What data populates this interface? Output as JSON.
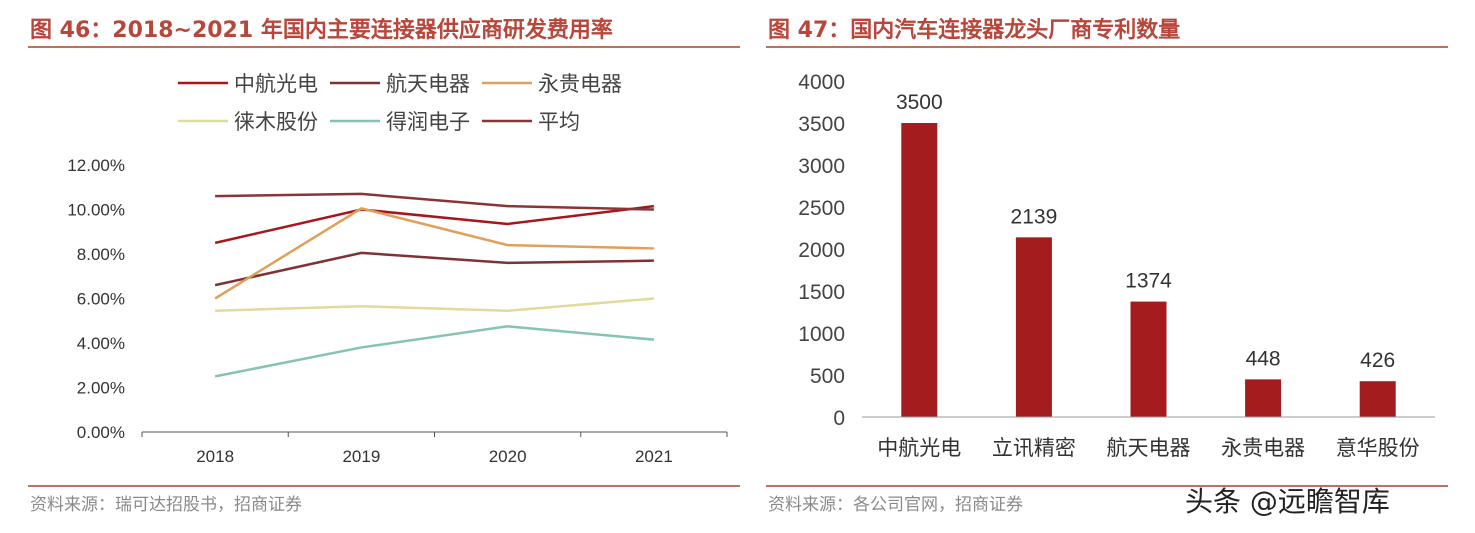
{
  "left": {
    "title": "图 46：2018~2021 年国内主要连接器供应商研发费用率",
    "source": "资料来源：瑞可达招股书，招商证券"
  },
  "right": {
    "title": "图 47：国内汽车连接器龙头厂商专利数量",
    "source": "资料来源：各公司官网，招商证券"
  },
  "watermark": "头条 @远瞻智库",
  "chart_data": [
    {
      "type": "line",
      "categories": [
        "2018",
        "2019",
        "2020",
        "2021"
      ],
      "ylim": [
        0,
        12
      ],
      "yticks": [
        "0.00%",
        "2.00%",
        "4.00%",
        "6.00%",
        "8.00%",
        "10.00%",
        "12.00%"
      ],
      "legend": "top",
      "series": [
        {
          "name": "中航光电",
          "color": "#a8151b",
          "values": [
            8.5,
            10.0,
            9.35,
            10.15
          ]
        },
        {
          "name": "航天电器",
          "color": "#7f3236",
          "values": [
            6.6,
            8.05,
            7.6,
            7.7
          ]
        },
        {
          "name": "永贵电器",
          "color": "#e0a05a",
          "values": [
            6.0,
            10.05,
            8.4,
            8.25
          ]
        },
        {
          "name": "徕木股份",
          "color": "#e3d99a",
          "values": [
            5.45,
            5.65,
            5.45,
            6.0
          ]
        },
        {
          "name": "得润电子",
          "color": "#85c3b3",
          "values": [
            2.5,
            3.8,
            4.75,
            4.15
          ]
        },
        {
          "name": "平均",
          "color": "#8a3438",
          "values": [
            10.6,
            10.7,
            10.15,
            10.0
          ]
        }
      ]
    },
    {
      "type": "bar",
      "categories": [
        "中航光电",
        "立讯精密",
        "航天电器",
        "永贵电器",
        "意华股份"
      ],
      "values": [
        3500,
        2139,
        1374,
        448,
        426
      ],
      "ylim": [
        0,
        4000
      ],
      "yticks": [
        "0",
        "500",
        "1000",
        "1500",
        "2000",
        "2500",
        "3000",
        "3500",
        "4000"
      ],
      "color": "#a51c1e"
    }
  ]
}
